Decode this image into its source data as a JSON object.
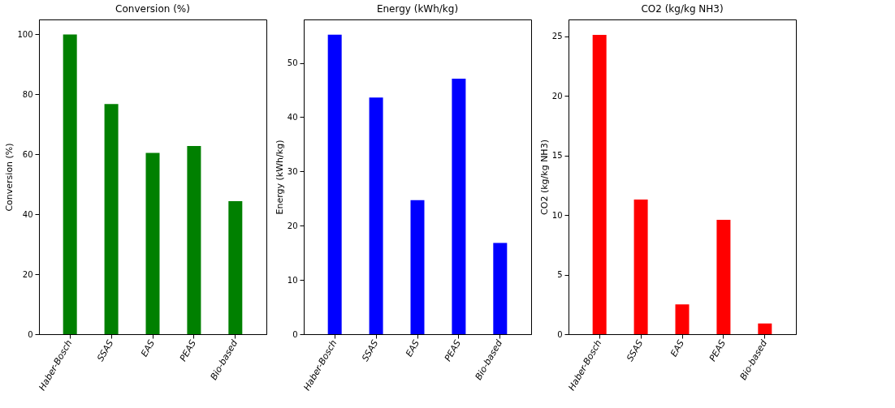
{
  "chart_data": [
    {
      "type": "bar",
      "title": "Conversion (%)",
      "ylabel": "Conversion (%)",
      "categories": [
        "Haber-Bosch",
        "SSAS",
        "EAS",
        "PEAS",
        "Bio-based"
      ],
      "values": [
        100,
        76.8,
        60.5,
        62.8,
        44.4
      ],
      "color": "#008000",
      "ylim": [
        0,
        105
      ],
      "yticks": [
        0,
        20,
        40,
        60,
        80,
        100
      ],
      "grid": false
    },
    {
      "type": "bar",
      "title": "Energy (kWh/kg)",
      "ylabel": "Energy (kWh/kg)",
      "categories": [
        "Haber-Bosch",
        "SSAS",
        "EAS",
        "PEAS",
        "Bio-based"
      ],
      "values": [
        55.2,
        43.6,
        24.7,
        47.1,
        16.8
      ],
      "color": "#0000ff",
      "ylim": [
        0,
        58
      ],
      "yticks": [
        0,
        10,
        20,
        30,
        40,
        50
      ],
      "grid": false
    },
    {
      "type": "bar",
      "title": "CO2 (kg/kg NH3)",
      "ylabel": "CO2 (kg/kg NH3)",
      "categories": [
        "Haber-Bosch",
        "SSAS",
        "EAS",
        "PEAS",
        "Bio-based"
      ],
      "values": [
        25.1,
        11.3,
        2.5,
        9.6,
        0.9
      ],
      "color": "#ff0000",
      "ylim": [
        0,
        26.4
      ],
      "yticks": [
        0,
        5,
        10,
        15,
        20,
        25
      ],
      "grid": false
    }
  ]
}
